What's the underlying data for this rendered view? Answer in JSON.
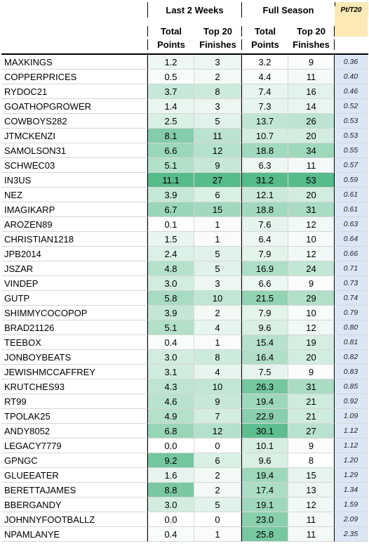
{
  "headers": {
    "group1": "Last 2 Weeks",
    "group2": "Full Season",
    "total_line1": "Total",
    "total_line2": "Points",
    "top20_line1": "Top 20",
    "top20_line2": "Finishes",
    "ratio": "Pt/T20"
  },
  "colors": {
    "ratio_header_bg": "#fde9b6",
    "ratio_col_bg": "#dbe7f5",
    "heat_low": "#ffffff",
    "heat_high": "#57bb8a"
  },
  "rows": [
    {
      "name": "MAXKINGS",
      "p2": "1.2",
      "t2": "3",
      "ps": "3.2",
      "ts": "9",
      "r": "0.36"
    },
    {
      "name": "COPPERPRICES",
      "p2": "0.5",
      "t2": "2",
      "ps": "4.4",
      "ts": "11",
      "r": "0.40"
    },
    {
      "name": "RYDOC21",
      "p2": "3.7",
      "t2": "8",
      "ps": "7.4",
      "ts": "16",
      "r": "0.46"
    },
    {
      "name": "GOATHOPGROWER",
      "p2": "1.4",
      "t2": "3",
      "ps": "7.3",
      "ts": "14",
      "r": "0.52"
    },
    {
      "name": "COWBOYS282",
      "p2": "2.5",
      "t2": "5",
      "ps": "13.7",
      "ts": "26",
      "r": "0.53"
    },
    {
      "name": "JTMCKENZI",
      "p2": "8.1",
      "t2": "11",
      "ps": "10.7",
      "ts": "20",
      "r": "0.53"
    },
    {
      "name": "SAMOLSON31",
      "p2": "6.6",
      "t2": "12",
      "ps": "18.8",
      "ts": "34",
      "r": "0.55"
    },
    {
      "name": "SCHWEC03",
      "p2": "5.1",
      "t2": "9",
      "ps": "6.3",
      "ts": "11",
      "r": "0.57"
    },
    {
      "name": "IN3US",
      "p2": "11.1",
      "t2": "27",
      "ps": "31.2",
      "ts": "53",
      "r": "0.59"
    },
    {
      "name": "NEZ",
      "p2": "3.9",
      "t2": "6",
      "ps": "12.1",
      "ts": "20",
      "r": "0.61"
    },
    {
      "name": "IMAGIKARP",
      "p2": "6.7",
      "t2": "15",
      "ps": "18.8",
      "ts": "31",
      "r": "0.61"
    },
    {
      "name": "AROZEN89",
      "p2": "0.1",
      "t2": "1",
      "ps": "7.6",
      "ts": "12",
      "r": "0.63"
    },
    {
      "name": "CHRISTIAN1218",
      "p2": "1.5",
      "t2": "1",
      "ps": "6.4",
      "ts": "10",
      "r": "0.64"
    },
    {
      "name": "JPB2014",
      "p2": "2.4",
      "t2": "5",
      "ps": "7.9",
      "ts": "12",
      "r": "0.66"
    },
    {
      "name": "JSZAR",
      "p2": "4.8",
      "t2": "5",
      "ps": "16.9",
      "ts": "24",
      "r": "0.71"
    },
    {
      "name": "VINDEP",
      "p2": "3.0",
      "t2": "3",
      "ps": "6.6",
      "ts": "9",
      "r": "0.73"
    },
    {
      "name": "GUTP",
      "p2": "5.8",
      "t2": "10",
      "ps": "21.5",
      "ts": "29",
      "r": "0.74"
    },
    {
      "name": "SHIMMYCOCOPOP",
      "p2": "3.9",
      "t2": "2",
      "ps": "7.9",
      "ts": "10",
      "r": "0.79"
    },
    {
      "name": "BRAD21126",
      "p2": "5.1",
      "t2": "4",
      "ps": "9.6",
      "ts": "12",
      "r": "0.80"
    },
    {
      "name": "TEEBOX",
      "p2": "0.4",
      "t2": "1",
      "ps": "15.4",
      "ts": "19",
      "r": "0.81"
    },
    {
      "name": "JONBOYBEATS",
      "p2": "3.0",
      "t2": "8",
      "ps": "16.4",
      "ts": "20",
      "r": "0.82"
    },
    {
      "name": "JEWISHMCCAFFREY",
      "p2": "3.1",
      "t2": "4",
      "ps": "7.5",
      "ts": "9",
      "r": "0.83"
    },
    {
      "name": "KRUTCHES93",
      "p2": "4.3",
      "t2": "10",
      "ps": "26.3",
      "ts": "31",
      "r": "0.85"
    },
    {
      "name": "RT99",
      "p2": "4.6",
      "t2": "9",
      "ps": "19.4",
      "ts": "21",
      "r": "0.92"
    },
    {
      "name": "TPOLAK25",
      "p2": "4.9",
      "t2": "7",
      "ps": "22.9",
      "ts": "21",
      "r": "1.09"
    },
    {
      "name": "ANDY8052",
      "p2": "6.8",
      "t2": "12",
      "ps": "30.1",
      "ts": "27",
      "r": "1.12"
    },
    {
      "name": "LEGACY7779",
      "p2": "0.0",
      "t2": "0",
      "ps": "10.1",
      "ts": "9",
      "r": "1.12"
    },
    {
      "name": "GPNGC",
      "p2": "9.2",
      "t2": "6",
      "ps": "9.6",
      "ts": "8",
      "r": "1.20"
    },
    {
      "name": "GLUEEATER",
      "p2": "1.6",
      "t2": "2",
      "ps": "19.4",
      "ts": "15",
      "r": "1.29"
    },
    {
      "name": "BERETTAJAMES",
      "p2": "8.8",
      "t2": "2",
      "ps": "17.4",
      "ts": "13",
      "r": "1.34"
    },
    {
      "name": "BBERGANDY",
      "p2": "3.0",
      "t2": "5",
      "ps": "19.1",
      "ts": "12",
      "r": "1.59"
    },
    {
      "name": "JOHNNYFOOTBALLZ",
      "p2": "0.0",
      "t2": "0",
      "ps": "23.0",
      "ts": "11",
      "r": "2.09"
    },
    {
      "name": "NPAMLANYE",
      "p2": "0.4",
      "t2": "1",
      "ps": "25.8",
      "ts": "11",
      "r": "2.35"
    }
  ]
}
